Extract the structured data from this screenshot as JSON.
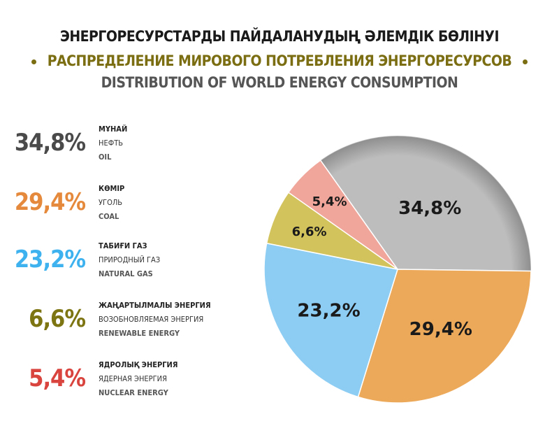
{
  "title": {
    "kazakh": "ЭНЕРГОРЕСУРСТАРДЫ ПАЙДАЛАНУДЫҢ ӘЛЕМДІК  БӨЛІНУІ",
    "russian": "РАСПРЕДЕЛЕНИЕ МИРОВОГО ПОТРЕБЛЕНИЯ ЭНЕРГОРЕСУРСОВ",
    "english": "DISTRIBUTION OF WORLD ENERGY CONSUMPTION"
  },
  "chart_data": {
    "type": "pie",
    "title": "DISTRIBUTION OF WORLD ENERGY CONSUMPTION",
    "start_angle_deg": -35.3,
    "direction": "clockwise",
    "slices": [
      {
        "name_kk": "МҰНАЙ",
        "name_ru": "НЕФТЬ",
        "name_en": "OIL",
        "value": 34.8,
        "label": "34,8%",
        "color": "#bdbdbd",
        "text_color": "#4a4a4a"
      },
      {
        "name_kk": "КӨМІР",
        "name_ru": "УГОЛЬ",
        "name_en": "COAL",
        "value": 29.4,
        "label": "29,4%",
        "color": "#eda95a",
        "text_color": "#e58a3c"
      },
      {
        "name_kk": "ТАБИҒИ ГАЗ",
        "name_ru": "ПРИРОДНЫЙ ГАЗ",
        "name_en": "NATURAL GAS",
        "value": 23.2,
        "label": "23,2%",
        "color": "#8ecdf3",
        "text_color": "#3eb2ee"
      },
      {
        "name_kk": "ЖАҢАРТЫЛМАЛЫ ЭНЕРГИЯ",
        "name_ru": "ВОЗОБНОВЛЯЕМАЯ ЭНЕРГИЯ",
        "name_en": "RENEWABLE ENERGY",
        "value": 6.6,
        "label": "6,6%",
        "color": "#d2c35c",
        "text_color": "#7d7412"
      },
      {
        "name_kk": "ЯДРОЛЫҚ ЭНЕРГИЯ",
        "name_ru": "ЯДЕРНАЯ ЭНЕРГИЯ",
        "name_en": "NUCLEAR ENERGY",
        "value": 5.4,
        "label": "5,4%",
        "color": "#f0a69a",
        "text_color": "#d9443e"
      }
    ],
    "legend_order": [
      0,
      1,
      2,
      3,
      4
    ],
    "legend": "left"
  }
}
